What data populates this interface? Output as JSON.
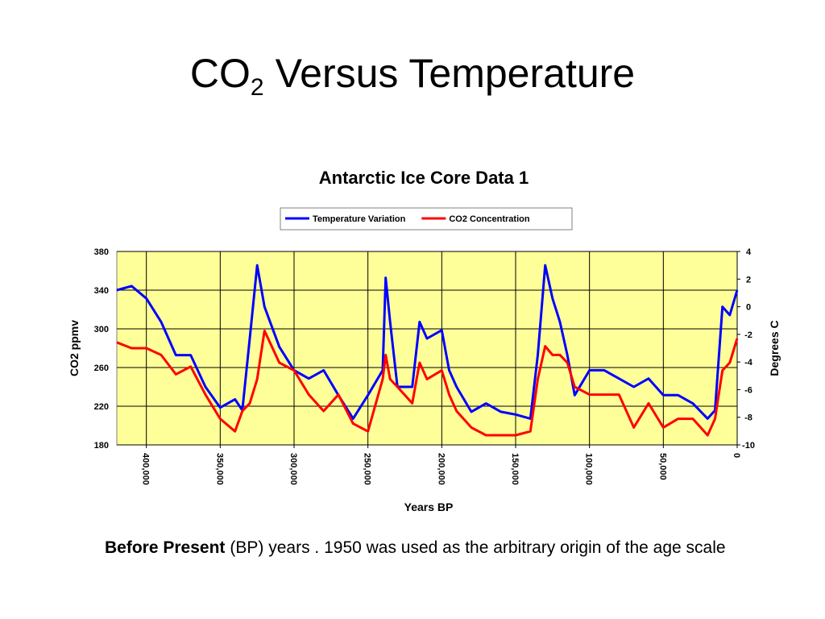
{
  "slide_title": {
    "main": "CO",
    "subscript": "2",
    "rest": "Versus Temperature"
  },
  "caption": {
    "bold": "Before Present",
    "text": "(BP) years . 1950 was used as the arbitrary origin of the age scale"
  },
  "chart_data": {
    "type": "line",
    "title": "Antarctic Ice Core Data 1",
    "xlabel": "Years BP",
    "ylabel": "CO2 ppmv",
    "y2label": "Degrees C",
    "x": [
      420000,
      410000,
      400000,
      390000,
      380000,
      370000,
      360000,
      350000,
      340000,
      335000,
      330000,
      325000,
      320000,
      310000,
      300000,
      290000,
      280000,
      270000,
      260000,
      250000,
      240000,
      238000,
      235000,
      230000,
      220000,
      215000,
      210000,
      200000,
      195000,
      190000,
      180000,
      170000,
      160000,
      150000,
      140000,
      135000,
      130000,
      125000,
      120000,
      115000,
      110000,
      100000,
      90000,
      80000,
      70000,
      60000,
      50000,
      40000,
      30000,
      20000,
      15000,
      10000,
      5000,
      0
    ],
    "series": [
      {
        "name": "Temperature Variation",
        "color": "#0000ff",
        "axis": "y2",
        "values": [
          1.2,
          1.5,
          0.6,
          -1.1,
          -3.5,
          -3.5,
          -5.8,
          -7.3,
          -6.7,
          -7.5,
          -2.3,
          3,
          0,
          -2.9,
          -4.6,
          -5.2,
          -4.6,
          -6.4,
          -8.1,
          -6.4,
          -4.6,
          2.1,
          -1.1,
          -5.8,
          -5.8,
          -1.1,
          -2.3,
          -1.7,
          -4.6,
          -5.8,
          -7.6,
          -7,
          -7.6,
          -7.8,
          -8.1,
          -3.5,
          3,
          0.6,
          -1.1,
          -3.5,
          -6.4,
          -4.6,
          -4.6,
          -5.2,
          -5.8,
          -5.2,
          -6.4,
          -6.4,
          -7,
          -8.1,
          -7.5,
          0,
          -0.6,
          1.2
        ]
      },
      {
        "name": "CO2 Concentration",
        "color": "#ff0000",
        "values": [
          286,
          280,
          280,
          273,
          253,
          261,
          232,
          207,
          194,
          215,
          223,
          248,
          298,
          265,
          257,
          232,
          215,
          232,
          202,
          194,
          248,
          273,
          248,
          240,
          223,
          265,
          248,
          257,
          232,
          215,
          198,
          190,
          190,
          190,
          194,
          248,
          282,
          273,
          273,
          265,
          240,
          232,
          232,
          232,
          198,
          223,
          198,
          207,
          207,
          190,
          207,
          257,
          265,
          290
        ]
      }
    ],
    "xlim": [
      420000,
      0
    ],
    "xticks": [
      {
        "value": 400000,
        "label": "400,000"
      },
      {
        "value": 350000,
        "label": "350,000"
      },
      {
        "value": 300000,
        "label": "300,000"
      },
      {
        "value": 250000,
        "label": "250,000"
      },
      {
        "value": 200000,
        "label": "200,000"
      },
      {
        "value": 150000,
        "label": "150,000"
      },
      {
        "value": 100000,
        "label": "100,000"
      },
      {
        "value": 50000,
        "label": "50,000"
      },
      0
    ],
    "ylim": [
      180,
      380
    ],
    "yticks": [
      180,
      220,
      260,
      300,
      340,
      380
    ],
    "y2lim": [
      -10,
      4
    ],
    "y2ticks": [
      -10,
      -8,
      -6,
      -4,
      -2,
      0,
      2,
      4
    ],
    "grid": true,
    "legend": "top",
    "background": "#ffff99"
  }
}
